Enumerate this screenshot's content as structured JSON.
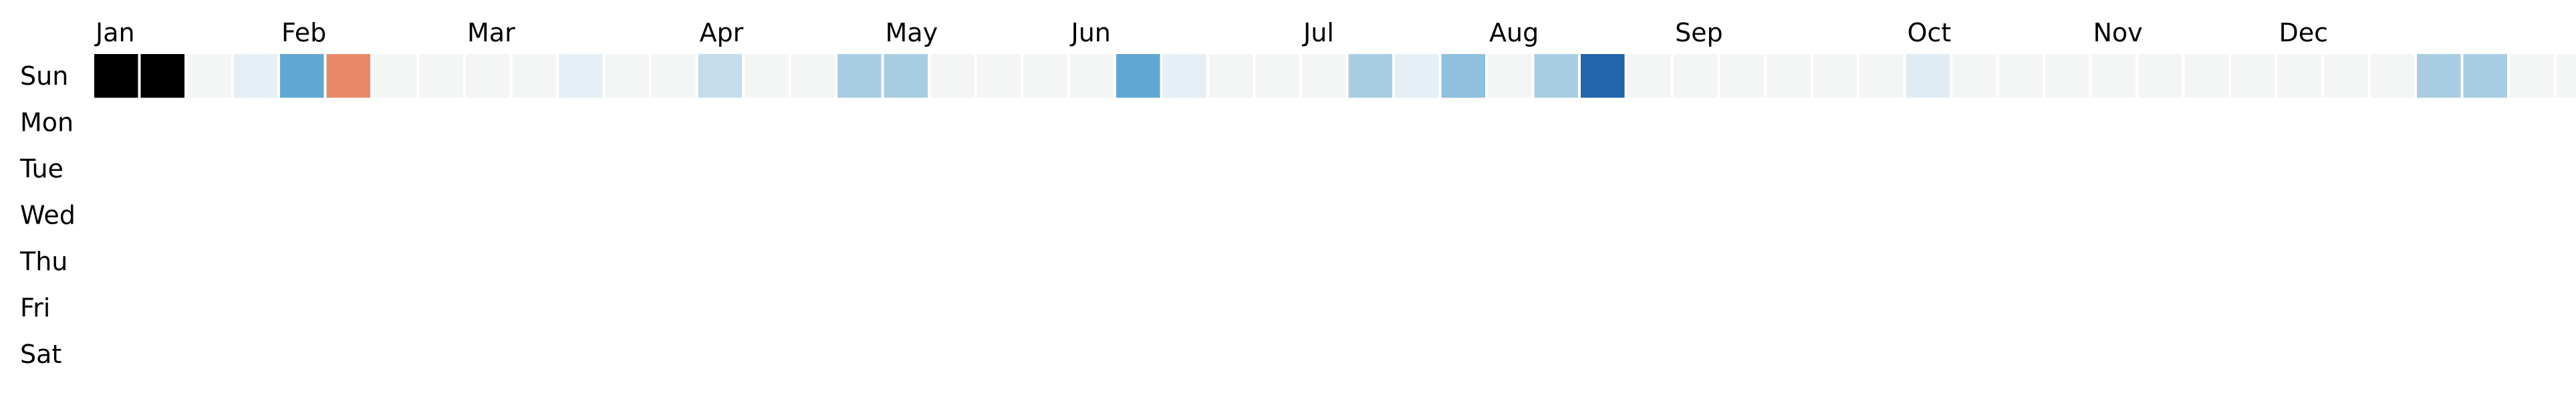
{
  "chart_data": {
    "type": "heatmap",
    "layout": "calendar",
    "title": "",
    "xlabel": "",
    "ylabel": "",
    "colormap": "diverging-blue-red",
    "empty_color": "#f4f5f5",
    "month_labels": [
      "Jan",
      "Feb",
      "Mar",
      "Apr",
      "May",
      "Jun",
      "Jul",
      "Aug",
      "Sep",
      "Oct",
      "Nov",
      "Dec"
    ],
    "month_start_weeks": [
      0,
      4,
      8,
      13,
      17,
      21,
      26,
      30,
      34,
      39,
      43,
      47
    ],
    "day_labels": [
      "Sun",
      "Mon",
      "Tue",
      "Wed",
      "Thu",
      "Fri",
      "Sat"
    ],
    "weeks": 53,
    "cells": [
      [
        0,
        0,
        "#f4f5f5",
        "#e6eff6",
        "#5fa8d3",
        "#e8896b",
        "#f4f5f5",
        "#f4f5f5",
        "#f4f5f5",
        "#f4f5f5",
        "#e6eff6",
        "#f4f5f5",
        "#f4f5f5",
        "#c5dcec",
        "#f4f5f5",
        "#f4f5f5",
        "#a9cde3",
        "#a9cde3",
        "#f4f5f5",
        "#f4f5f5",
        "#f4f5f5",
        "#f4f5f5",
        "#5fa8d3",
        "#e6eff6",
        "#f4f5f5",
        "#f4f5f5",
        "#f4f5f5",
        "#a9cde3",
        "#e6eff6",
        "#8fc1de",
        "#f4f5f5",
        "#a9cde3",
        "#2166ac",
        "#f4f5f5",
        "#f4f5f5",
        "#f4f5f5",
        "#f4f5f5",
        "#f4f5f5",
        "#f4f5f5",
        "#e0ecf4",
        "#f4f5f5",
        "#f4f5f5",
        "#f4f5f5",
        "#f4f5f5",
        "#f4f5f5",
        "#f4f5f5",
        "#f4f5f5",
        "#f4f5f5",
        "#f4f5f5",
        "#f4f5f5",
        "#a9cde3",
        "#a9cde3",
        "#f4f5f5",
        "#f4f5f5",
        "#f4f5f5",
        "#f4f5f5",
        "#f4f5f5",
        "#f4f5f5"
      ]
    ]
  }
}
